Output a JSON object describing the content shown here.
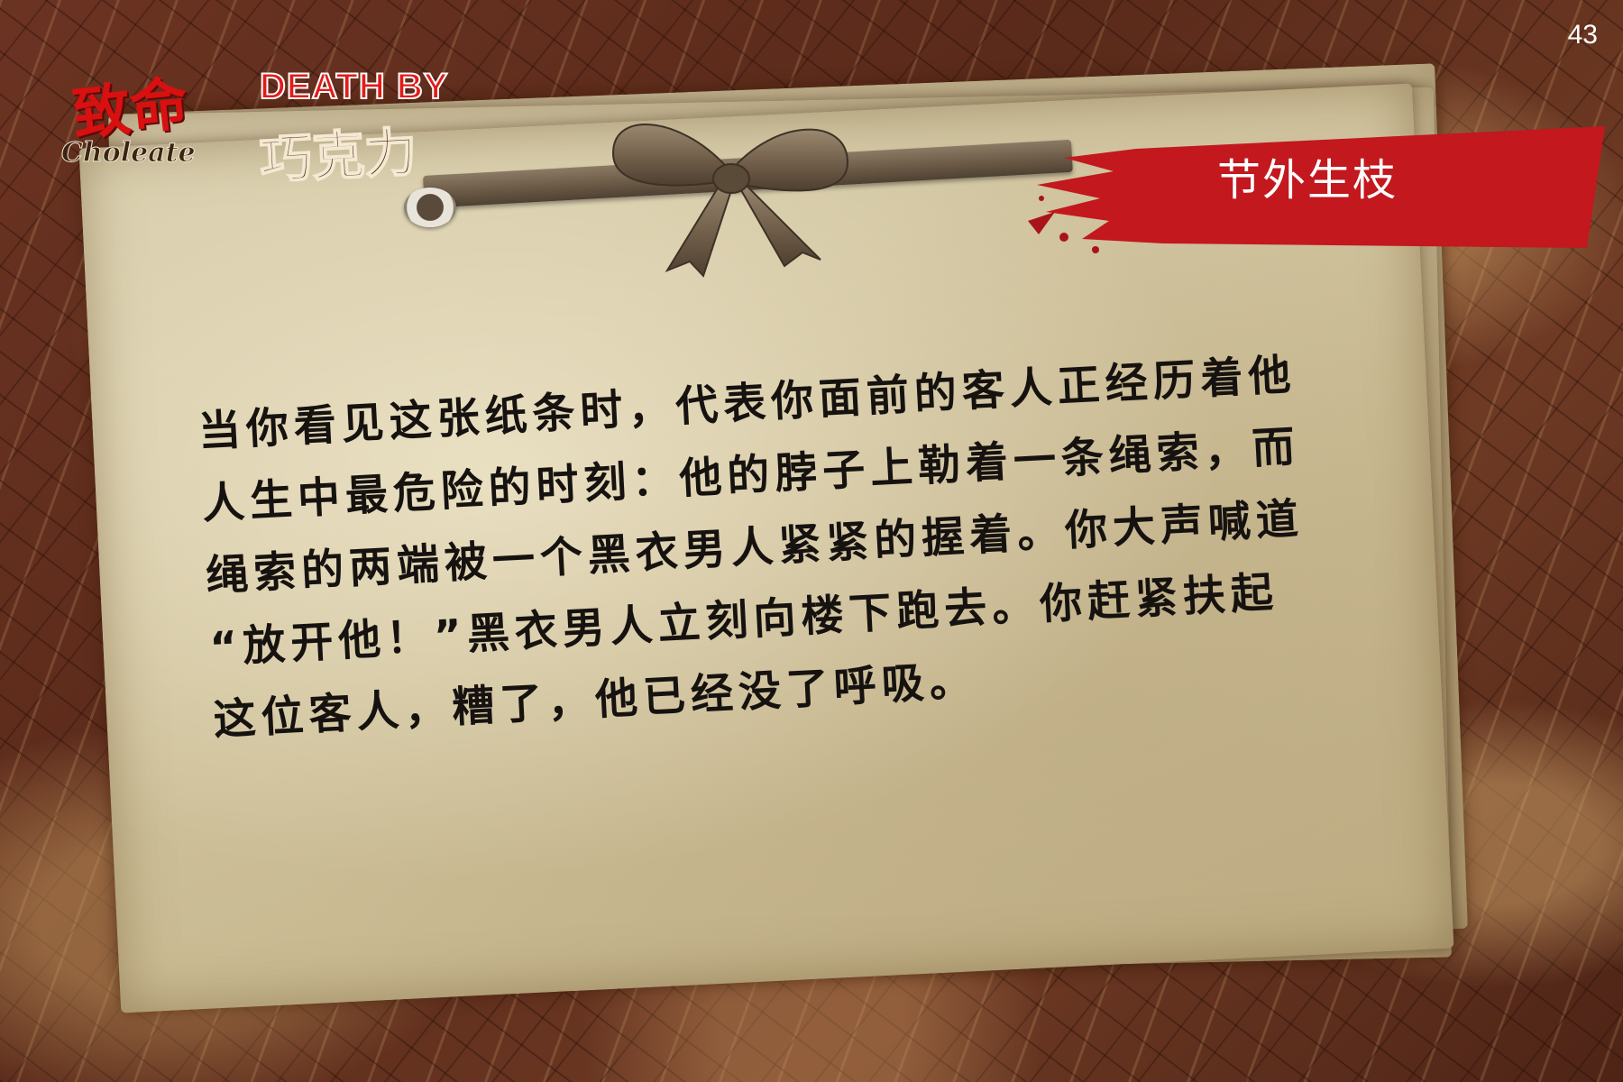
{
  "slide_number": "43",
  "logo": {
    "zhiming": "致命",
    "death_by": "DEATH BY",
    "chocolate": "Choleate",
    "qiaokeli": "巧克力"
  },
  "tag": {
    "label": "节外生枝",
    "color": "#c2181e"
  },
  "note": {
    "lines": [
      "当你看见这张纸条时，代表你面前的客人正经历着他",
      "人生中最危险的时刻：他的脖子上勒着一条绳索，而",
      "绳索的两端被一个黑衣男人紧紧的握着。你大声喊道",
      "“放开他！”黑衣男人立刻向楼下跑去。你赶紧扶起",
      "这位客人，糟了，他已经没了呼吸。"
    ]
  }
}
